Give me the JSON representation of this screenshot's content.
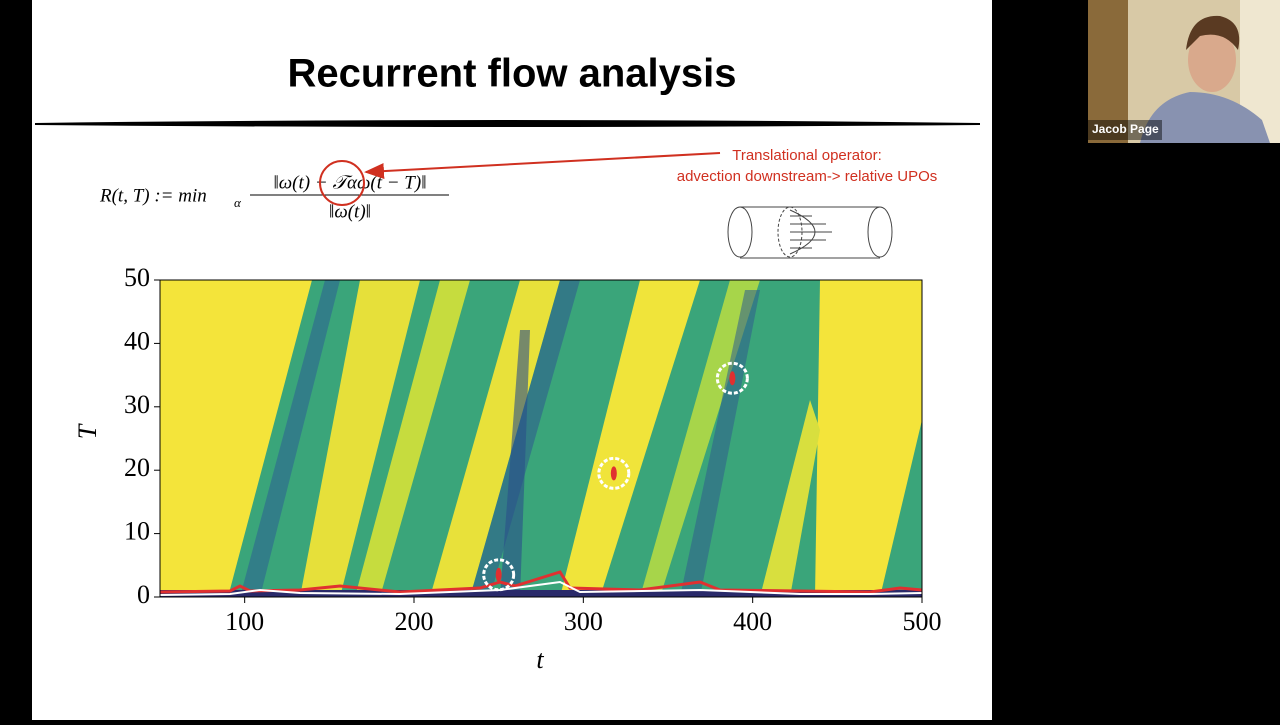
{
  "slide": {
    "title": "Recurrent flow analysis",
    "formula": {
      "lhs": "R(t, T) := min",
      "lhs_sub": "α",
      "numerator": "‖ω(t) − 𝒯αω(t − T)‖",
      "denominator": "‖ω(t)‖"
    },
    "annotation": [
      "Translational operator:",
      "advection  downstream-> relative UPOs"
    ]
  },
  "participant": {
    "name": "Jacob Page"
  },
  "chart_data": {
    "type": "heatmap",
    "xlabel": "t",
    "ylabel": "T",
    "xlim": [
      50,
      500
    ],
    "ylim": [
      0,
      50
    ],
    "xticks": [
      100,
      200,
      300,
      400,
      500
    ],
    "yticks": [
      0,
      10,
      20,
      30,
      40,
      50
    ],
    "x": [
      250,
      318,
      388
    ],
    "values": [
      3.5,
      19.5,
      34.5
    ]
  }
}
